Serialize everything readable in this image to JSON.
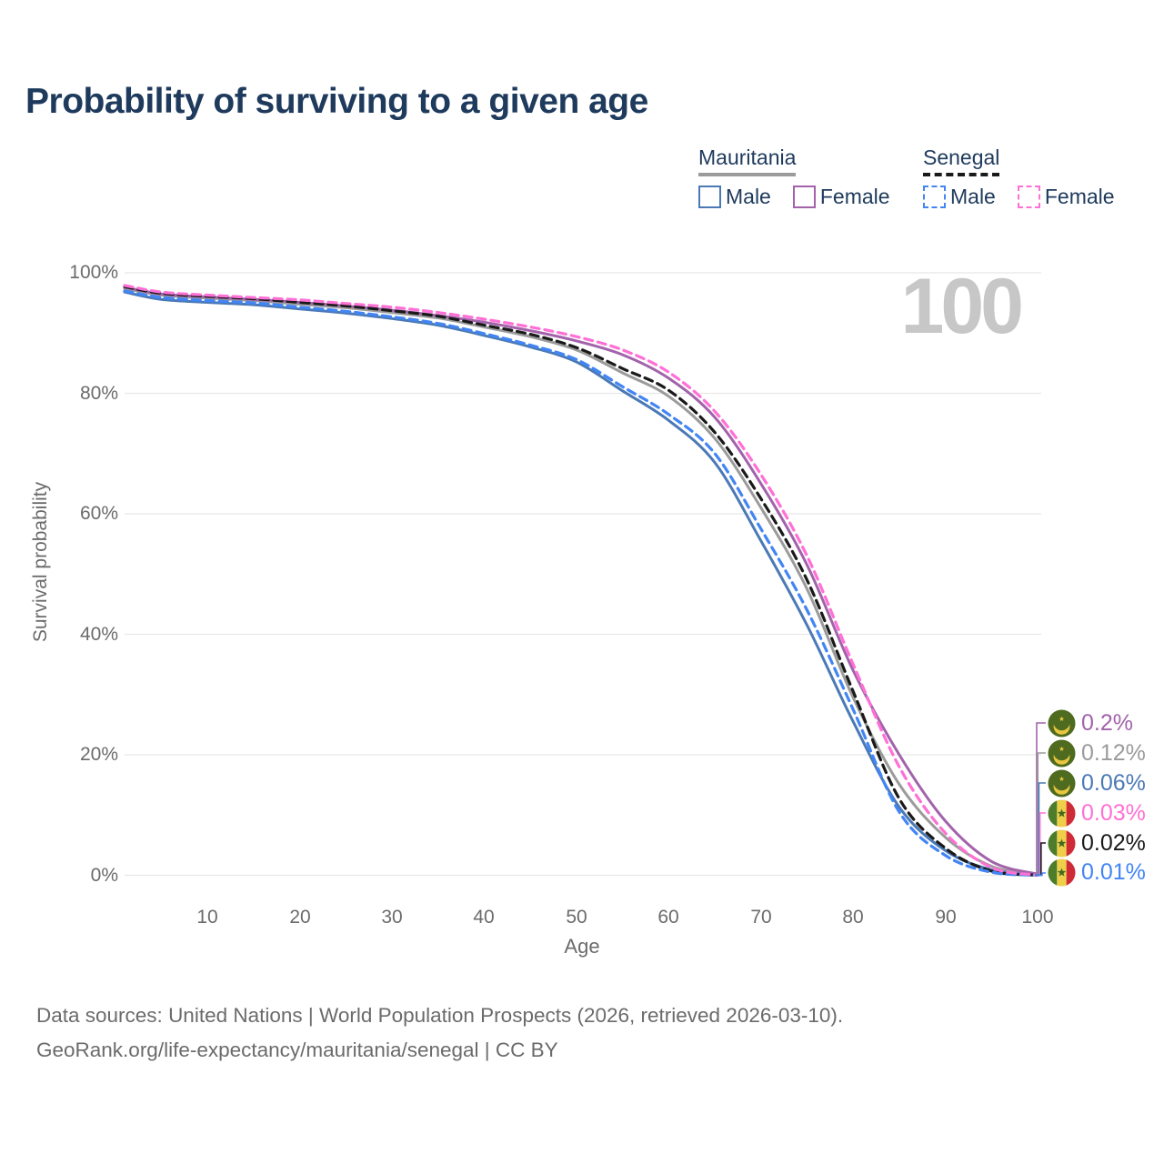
{
  "title": "Probability of surviving to a given age",
  "legend": {
    "groups": [
      {
        "name": "Mauritania",
        "style": "solid",
        "underline_color": "#9b9b9b",
        "items": [
          {
            "label": "Male",
            "color": "#4a79b6"
          },
          {
            "label": "Female",
            "color": "#a263ab"
          }
        ]
      },
      {
        "name": "Senegal",
        "style": "dashed",
        "underline_color": "#1a1a1a",
        "items": [
          {
            "label": "Male",
            "color": "#4285f4"
          },
          {
            "label": "Female",
            "color": "#ff70d6"
          }
        ]
      }
    ]
  },
  "chart_data": {
    "type": "line",
    "title": "Probability of surviving to a given age",
    "xlabel": "Age",
    "ylabel": "Survival probability",
    "xlim": [
      1,
      100
    ],
    "ylim": [
      0,
      100
    ],
    "grid": "horizontal-only",
    "watermark": "100",
    "ytick_values": [
      100,
      80,
      60,
      40,
      20,
      0
    ],
    "ytick_labels": [
      "100%",
      "80%",
      "60%",
      "40%",
      "20%",
      "0%"
    ],
    "xtick_values": [
      10,
      20,
      30,
      40,
      50,
      60,
      70,
      80,
      90,
      100
    ],
    "xtick_labels": [
      "10",
      "20",
      "30",
      "40",
      "50",
      "60",
      "70",
      "80",
      "90",
      "100"
    ],
    "x_ages": [
      1,
      5,
      10,
      15,
      20,
      25,
      30,
      35,
      40,
      45,
      50,
      55,
      60,
      65,
      70,
      75,
      80,
      85,
      90,
      95,
      100
    ],
    "series": [
      {
        "id": "mauritania-total",
        "name": "Mauritania (both sexes)",
        "color": "#9b9b9b",
        "dash": "solid",
        "values": [
          97.4,
          96.3,
          95.8,
          95.4,
          94.8,
          94.2,
          93.4,
          92.5,
          91.0,
          89.4,
          87.2,
          83.4,
          79.5,
          72.5,
          61.0,
          47.5,
          29.5,
          15.1,
          6.3,
          1.5,
          0.12
        ]
      },
      {
        "id": "mauritania-male",
        "name": "Mauritania Male",
        "color": "#4a79b6",
        "dash": "solid",
        "values": [
          96.8,
          95.6,
          95.1,
          94.7,
          94.0,
          93.3,
          92.4,
          91.3,
          89.6,
          87.7,
          85.2,
          80.4,
          75.5,
          68.5,
          55.5,
          41.5,
          25.5,
          11.3,
          4.1,
          0.9,
          0.06
        ]
      },
      {
        "id": "mauritania-female",
        "name": "Mauritania Female",
        "color": "#a263ab",
        "dash": "solid",
        "values": [
          97.6,
          96.5,
          96.0,
          95.6,
          95.1,
          94.5,
          93.8,
          92.9,
          91.8,
          90.4,
          88.7,
          86.4,
          82.5,
          76.0,
          65.0,
          51.5,
          34.0,
          20.0,
          9.0,
          2.3,
          0.2
        ]
      },
      {
        "id": "senegal-total",
        "name": "Senegal (both sexes)",
        "color": "#1a1a1a",
        "dash": "dashed",
        "values": [
          97.7,
          96.6,
          96.1,
          95.7,
          95.1,
          94.5,
          93.7,
          92.8,
          91.3,
          89.8,
          87.6,
          84.1,
          80.5,
          73.5,
          62.5,
          49.0,
          30.5,
          12.7,
          4.5,
          0.7,
          0.02
        ]
      },
      {
        "id": "senegal-male",
        "name": "Senegal Male",
        "color": "#4285f4",
        "dash": "dashed",
        "values": [
          97.0,
          95.9,
          95.4,
          95.0,
          94.3,
          93.6,
          92.7,
          91.6,
          89.9,
          88.0,
          85.6,
          81.1,
          76.5,
          70.0,
          57.5,
          44.0,
          27.5,
          10.5,
          3.3,
          0.5,
          0.01
        ]
      },
      {
        "id": "senegal-female",
        "name": "Senegal Female",
        "color": "#ff70d6",
        "dash": "dashed",
        "values": [
          97.9,
          96.8,
          96.3,
          95.9,
          95.5,
          94.9,
          94.3,
          93.4,
          92.3,
          91.0,
          89.4,
          87.2,
          83.5,
          77.0,
          66.5,
          53.0,
          35.0,
          18.0,
          7.0,
          1.3,
          0.03
        ]
      }
    ]
  },
  "end_labels": [
    {
      "country": "Mauritania",
      "flag": "mauritania-flag",
      "series": "mauritania-female",
      "value": "0.2%",
      "color": "#a263ab"
    },
    {
      "country": "Mauritania",
      "flag": "mauritania-flag",
      "series": "mauritania-total",
      "value": "0.12%",
      "color": "#9b9b9b"
    },
    {
      "country": "Mauritania",
      "flag": "mauritania-flag",
      "series": "mauritania-male",
      "value": "0.06%",
      "color": "#4a79b6"
    },
    {
      "country": "Senegal",
      "flag": "senegal-flag",
      "series": "senegal-female",
      "value": "0.03%",
      "color": "#ff70d6"
    },
    {
      "country": "Senegal",
      "flag": "senegal-flag",
      "series": "senegal-total",
      "value": "0.02%",
      "color": "#1a1a1a"
    },
    {
      "country": "Senegal",
      "flag": "senegal-flag",
      "series": "senegal-male",
      "value": "0.01%",
      "color": "#4285f4"
    }
  ],
  "footer": {
    "line1": "Data sources: United Nations | World Population Prospects (2026, retrieved 2026-03-10).",
    "line2": "GeoRank.org/life-expectancy/mauritania/senegal | CC BY"
  }
}
